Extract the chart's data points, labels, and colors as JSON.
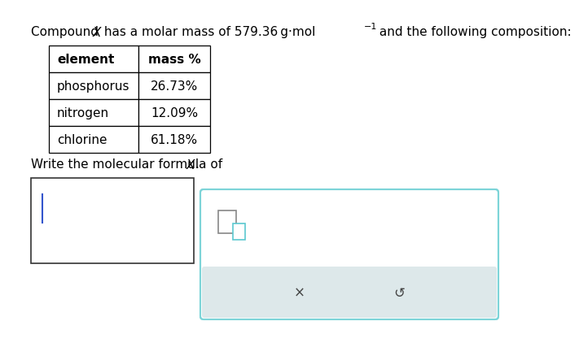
{
  "bg_color": "#ffffff",
  "title_font_size": 11,
  "table_font_size": 11,
  "table_header_bold": true,
  "table_headers": [
    "element",
    "mass %"
  ],
  "table_rows": [
    [
      "phosphorus",
      "26.73%"
    ],
    [
      "nitrogen",
      "12.09%"
    ],
    [
      "chlorine",
      "61.18%"
    ]
  ],
  "table_border_color": "#000000",
  "table_lw": 0.9,
  "question_font_size": 11,
  "answer_box_border": "#333333",
  "input_box_border": "#7dd4d8",
  "toolbar_bg": "#dde8ea",
  "icon_color": "#5bc8d0",
  "cursor_color": "#3355cc",
  "text_color_dark": "#333333",
  "title_line": "Compound $\\mathit{X}$ has a molar mass of 579.36 g·mol$^{-1}$ and the following composition:"
}
